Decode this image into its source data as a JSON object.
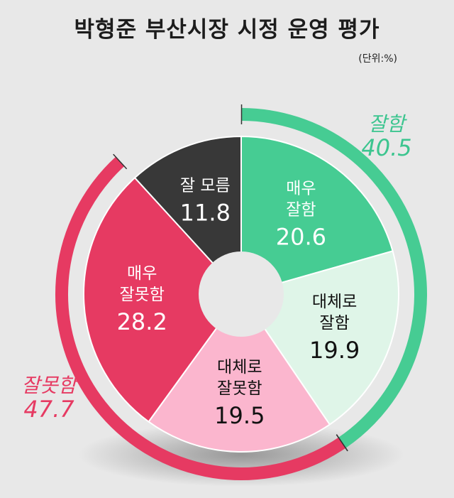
{
  "title": "박형준 부산시장 시정 운영 평가",
  "unit": "(단위:%)",
  "chart_data": {
    "type": "pie",
    "slices": [
      {
        "name_lines": [
          "매우",
          "잘함"
        ],
        "value": 20.6,
        "color": "#46cc93",
        "text_color": "#ffffff"
      },
      {
        "name_lines": [
          "대체로",
          "잘함"
        ],
        "value": 19.9,
        "color": "#dff5e8",
        "text_color": "#111111"
      },
      {
        "name_lines": [
          "대체로",
          "잘못함"
        ],
        "value": 19.5,
        "color": "#fbb6ce",
        "text_color": "#111111"
      },
      {
        "name_lines": [
          "매우",
          "잘못함"
        ],
        "value": 28.2,
        "color": "#e63a62",
        "text_color": "#ffffff"
      },
      {
        "name_lines": [
          "잘 모름"
        ],
        "value": 11.8,
        "color": "#383838",
        "text_color": "#ffffff"
      }
    ],
    "groups": [
      {
        "name": "잘함",
        "value": "40.5",
        "color": "#46cc93"
      },
      {
        "name": "잘못함",
        "value": "47.7",
        "color": "#e63a62"
      }
    ]
  }
}
